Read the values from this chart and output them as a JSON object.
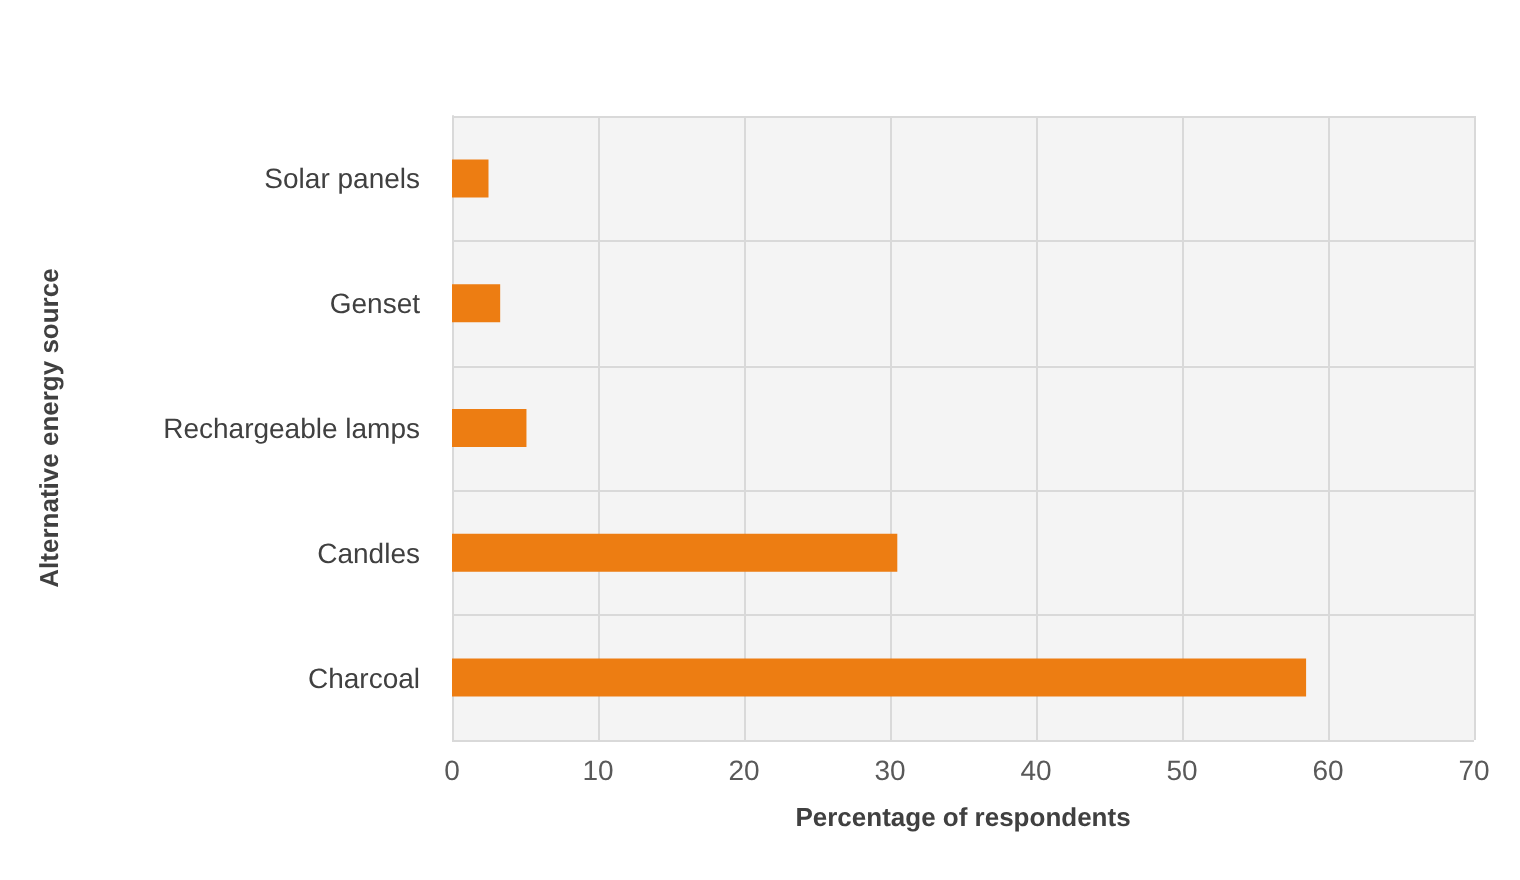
{
  "chart_data": {
    "type": "bar",
    "orientation": "horizontal",
    "xlabel": "Percentage of respondents",
    "ylabel": "Alternative energy source",
    "categories": [
      "Solar panels",
      "Genset",
      "Rechargeable lamps",
      "Candles",
      "Charcoal"
    ],
    "values": [
      2.5,
      3.3,
      5.1,
      30.5,
      58.5
    ],
    "color": "#ed7d12",
    "xlim": [
      0,
      70
    ],
    "xticks": [
      0,
      10,
      20,
      30,
      40,
      50,
      60,
      70
    ],
    "grid": true
  }
}
